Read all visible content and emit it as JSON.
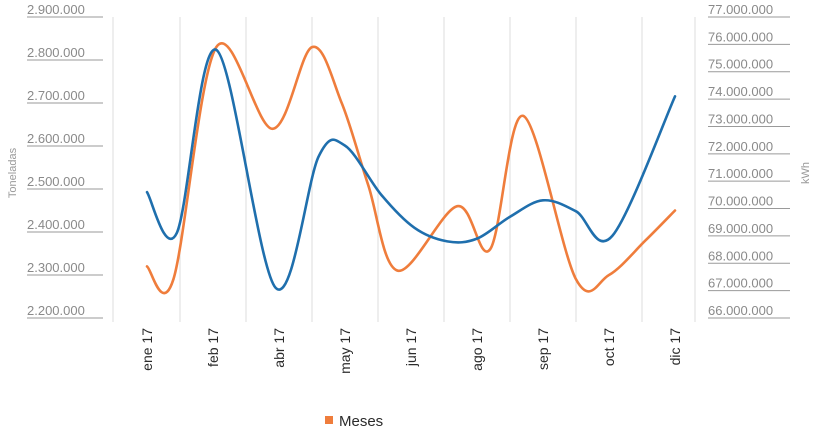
{
  "chart_data": {
    "type": "line",
    "categories": [
      "ene 17",
      "feb 17",
      "abr 17",
      "may 17",
      "jun 17",
      "ago 17",
      "sep 17",
      "oct 17",
      "dic 17"
    ],
    "left_axis": {
      "label": "Toneladas",
      "ylim": [
        2200000,
        2900000
      ],
      "ticks": [
        "2.200.000",
        "2.300.000",
        "2.400.000",
        "2.500.000",
        "2.600.000",
        "2.700.000",
        "2.800.000",
        "2.900.000"
      ]
    },
    "right_axis": {
      "label": "kWh",
      "ylim": [
        66000000,
        77000000
      ],
      "ticks": [
        "66.000.000",
        "67.000.000",
        "68.000.000",
        "69.000.000",
        "70.000.000",
        "71.000.000",
        "72.000.000",
        "73.000.000",
        "74.000.000",
        "75.000.000",
        "76.000.000",
        "77.000.000"
      ]
    },
    "series": [
      {
        "color": "#ef7d3c",
        "axis": "left",
        "x": [
          0.0,
          0.4,
          1.05,
          1.9,
          2.5,
          2.95,
          3.35,
          3.8,
          4.7,
          5.2,
          5.7,
          6.5,
          7.0,
          7.55,
          8.0
        ],
        "values": [
          2320000,
          2290000,
          2830000,
          2640000,
          2830000,
          2700000,
          2510000,
          2310000,
          2460000,
          2360000,
          2670000,
          2290000,
          2300000,
          2380000,
          2450000
        ]
      },
      {
        "color": "#1f6fad",
        "axis": "right",
        "x": [
          0.0,
          0.45,
          1.05,
          1.95,
          2.6,
          3.0,
          3.55,
          4.05,
          4.55,
          5.0,
          5.5,
          6.0,
          6.5,
          7.05,
          8.0
        ],
        "values": [
          70600000,
          69100000,
          75800000,
          67100000,
          71900000,
          72300000,
          70500000,
          69300000,
          68800000,
          68900000,
          69700000,
          70300000,
          69900000,
          69000000,
          74100000
        ]
      }
    ],
    "legend": {
      "position": "bottom-center",
      "entries": [
        {
          "label": "Meses",
          "color": "#ef7d3c"
        }
      ]
    },
    "grid": {
      "vertical": true,
      "horizontal": false
    }
  }
}
